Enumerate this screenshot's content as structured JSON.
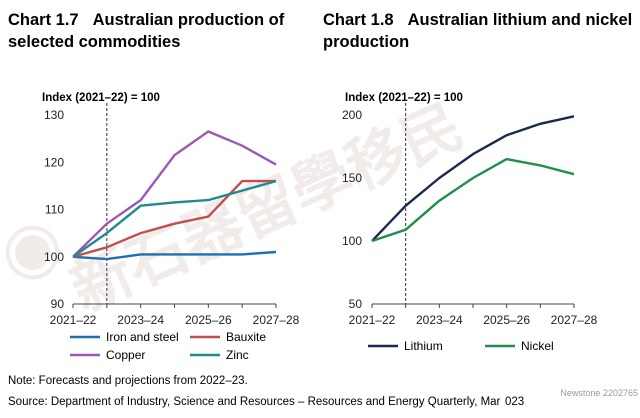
{
  "charts": {
    "left": {
      "number": "Chart 1.7",
      "title": "Australian production of selected commodities"
    },
    "right": {
      "number": "Chart 1.8",
      "title": "Australian lithium and nickel production"
    }
  },
  "notes": {
    "note": "Note: Forecasts and projections from 2022–23.",
    "source": "Source: Department of Industry, Science and Resources – Resources and Energy Quarterly, Mar  023"
  },
  "watermark": {
    "text": "新石器留學移民",
    "badge": "Newstone",
    "badge_id": "2202765"
  },
  "chart_data": [
    {
      "type": "line",
      "ylabel": "Index (2021–22) = 100",
      "ylim": [
        90,
        130
      ],
      "yticks": [
        90,
        100,
        110,
        120,
        130
      ],
      "x": [
        "2021–22",
        "2022–23",
        "2023–24",
        "2024–25",
        "2025–26",
        "2026–27",
        "2027–28"
      ],
      "xtick_labels": [
        "2021–22",
        "2023–24",
        "2025–26",
        "2027–28"
      ],
      "forecast_start": "2022–23",
      "series": [
        {
          "name": "Iron and steel",
          "color": "#1f6fb5",
          "values": [
            100,
            99.5,
            100.5,
            100.5,
            100.5,
            100.5,
            101
          ]
        },
        {
          "name": "Bauxite",
          "color": "#c0504d",
          "values": [
            100,
            102,
            105,
            107,
            108.5,
            116,
            116
          ]
        },
        {
          "name": "Copper",
          "color": "#9b59b6",
          "values": [
            100,
            107,
            112,
            121.5,
            126.5,
            123.5,
            119.5
          ]
        },
        {
          "name": "Zinc",
          "color": "#218a8c",
          "values": [
            100,
            105,
            110.8,
            111.5,
            112,
            114,
            116
          ]
        }
      ]
    },
    {
      "type": "line",
      "ylabel": "Index (2021–22) = 100",
      "ylim": [
        50,
        200
      ],
      "yticks": [
        50,
        100,
        150,
        200
      ],
      "x": [
        "2021–22",
        "2022–23",
        "2023–24",
        "2024–25",
        "2025–26",
        "2026–27",
        "2027–28"
      ],
      "xtick_labels": [
        "2021–22",
        "2023–24",
        "2025–26",
        "2027–28"
      ],
      "forecast_start": "2022–23",
      "series": [
        {
          "name": "Lithium",
          "color": "#1b2a4a",
          "values": [
            100,
            128,
            150,
            169,
            184,
            193,
            199
          ]
        },
        {
          "name": "Nickel",
          "color": "#1f8f50",
          "values": [
            100,
            109,
            132,
            150,
            165,
            160,
            153
          ]
        }
      ]
    }
  ]
}
